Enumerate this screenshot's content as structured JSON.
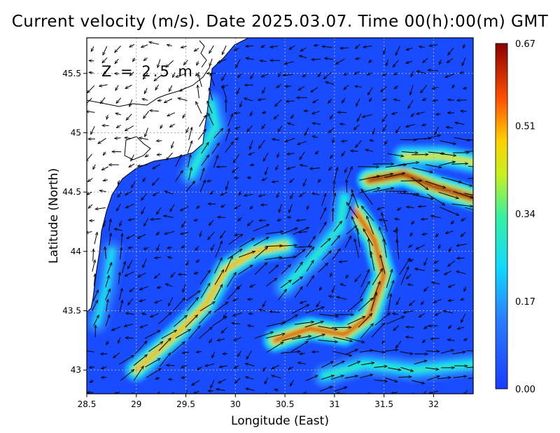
{
  "title": "Current velocity (m/s). Date 2025.03.07. Time 00(h):00(m) GMT",
  "depth_label": "Z = 2.5 m",
  "colors": {
    "ocean_low": "#1a4cff",
    "land": "#ffffff",
    "coast": "#000000",
    "grid": "#aaaaaa",
    "arrow": "#000000"
  },
  "colorbar": {
    "min": 0.0,
    "max": 0.67,
    "tick_labels": [
      "0.67",
      "0.51",
      "0.34",
      "0.17",
      "0.00"
    ],
    "tick_values": [
      0.67,
      0.51,
      0.34,
      0.17,
      0.0
    ]
  },
  "chart_data": {
    "type": "heatmap",
    "title": "Current velocity (m/s). Date 2025.03.07. Time 00(h):00(m) GMT",
    "xlabel": "Longitude (East)",
    "ylabel": "Latitude (North)",
    "xlim": [
      28.5,
      32.4
    ],
    "ylim": [
      42.8,
      45.8
    ],
    "x_ticks": [
      28.5,
      29,
      29.5,
      30,
      30.5,
      31,
      31.5,
      32
    ],
    "x_tick_labels": [
      "28.5",
      "29",
      "29.5",
      "30",
      "30.5",
      "31",
      "31.5",
      "32"
    ],
    "y_ticks": [
      43,
      43.5,
      44,
      44.5,
      45,
      45.5
    ],
    "y_tick_labels": [
      "43",
      "43.5",
      "44",
      "44.5",
      "45",
      "45.5"
    ],
    "grid": true,
    "value_range": [
      0.0,
      0.67
    ],
    "features": [
      {
        "kind": "jet",
        "points": [
          [
            29.0,
            43.0
          ],
          [
            29.4,
            43.3
          ],
          [
            29.7,
            43.55
          ],
          [
            29.9,
            43.85
          ],
          [
            30.2,
            44.0
          ],
          [
            30.5,
            44.05
          ]
        ],
        "value": 0.5
      },
      {
        "kind": "jet",
        "points": [
          [
            30.4,
            43.25
          ],
          [
            30.75,
            43.35
          ],
          [
            31.1,
            43.3
          ],
          [
            31.35,
            43.45
          ],
          [
            31.5,
            43.8
          ],
          [
            31.4,
            44.1
          ],
          [
            31.2,
            44.35
          ]
        ],
        "value": 0.6
      },
      {
        "kind": "jet",
        "points": [
          [
            30.5,
            43.7
          ],
          [
            30.8,
            43.95
          ],
          [
            31.05,
            44.2
          ],
          [
            31.1,
            44.45
          ]
        ],
        "value": 0.3
      },
      {
        "kind": "jet",
        "points": [
          [
            31.35,
            44.6
          ],
          [
            31.7,
            44.65
          ],
          [
            32.0,
            44.55
          ],
          [
            32.4,
            44.45
          ]
        ],
        "value": 0.67
      },
      {
        "kind": "jet",
        "points": [
          [
            31.7,
            44.8
          ],
          [
            32.1,
            44.8
          ],
          [
            32.4,
            44.75
          ]
        ],
        "value": 0.45
      },
      {
        "kind": "jet",
        "points": [
          [
            29.55,
            44.65
          ],
          [
            29.7,
            44.9
          ],
          [
            29.8,
            45.05
          ],
          [
            29.75,
            45.25
          ]
        ],
        "value": 0.3
      },
      {
        "kind": "jet",
        "points": [
          [
            30.9,
            42.95
          ],
          [
            31.3,
            43.05
          ],
          [
            31.8,
            43.0
          ],
          [
            32.4,
            43.05
          ]
        ],
        "value": 0.3
      },
      {
        "kind": "jet",
        "points": [
          [
            28.6,
            43.4
          ],
          [
            28.7,
            43.7
          ],
          [
            28.75,
            44.0
          ]
        ],
        "value": 0.25
      }
    ]
  }
}
